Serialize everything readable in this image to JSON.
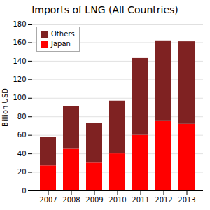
{
  "chart_data": {
    "type": "bar",
    "title": "Imports of LNG (All Countries)",
    "categories": [
      "2007",
      "2008",
      "2009",
      "2010",
      "2011",
      "2012",
      "2013"
    ],
    "series": [
      {
        "name": "Japan",
        "color": "#ff0000",
        "values": [
          27,
          45,
          30,
          40,
          60,
          75,
          72
        ]
      },
      {
        "name": "Others",
        "color": "#7f2222",
        "values": [
          31,
          46,
          43,
          57,
          83,
          87,
          89
        ]
      }
    ],
    "ylabel": "Billion USD",
    "ylim": [
      0,
      180
    ],
    "yticks": [
      0,
      20,
      40,
      60,
      80,
      100,
      120,
      140,
      160,
      180
    ],
    "stacked": true,
    "grid": true,
    "legend": "upper left"
  }
}
